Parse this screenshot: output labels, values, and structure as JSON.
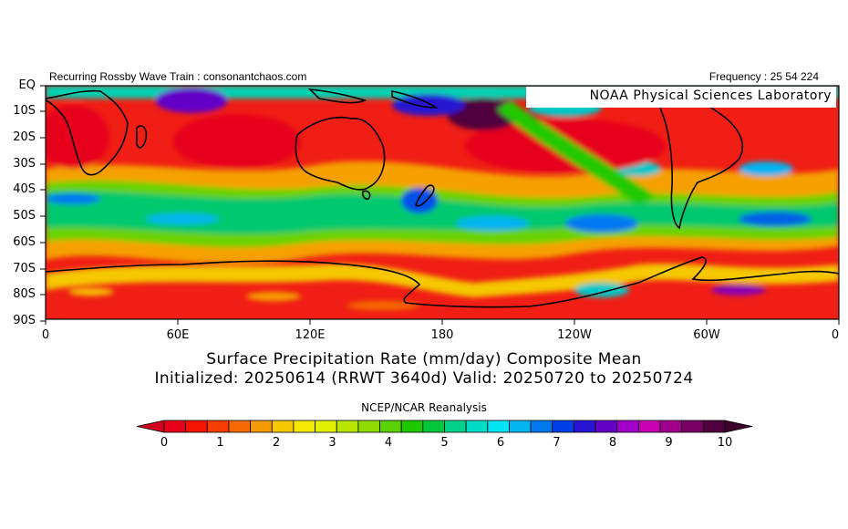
{
  "header": {
    "left_text": "Recurring Rossby Wave Train : consonantchaos.com",
    "right_text": "Frequency : 25 54 224"
  },
  "badge": {
    "text": "NOAA Physical Sciences Laboratory"
  },
  "map": {
    "region": "Southern Hemisphere, 0°–360° longitude, Equator to 90°S",
    "lat_labels": [
      "EQ",
      "10S",
      "20S",
      "30S",
      "40S",
      "50S",
      "60S",
      "70S",
      "80S",
      "90S"
    ],
    "lon_labels": [
      "0",
      "60E",
      "120E",
      "180",
      "120W",
      "60W",
      "0"
    ],
    "field": "precipitation rate shaded; high values in tropics and storm tracks, low values in subtropical highs and Antarctica"
  },
  "titles": {
    "line1": "Surface Precipitation Rate (mm/day) Composite Mean",
    "line2": "Initialized: 20250614 (RRWT 3640d) Valid: 20250720 to 20250724"
  },
  "source": {
    "text": "NCEP/NCAR Reanalysis"
  },
  "colorbar": {
    "ticks": [
      "0",
      "1",
      "2",
      "3",
      "4",
      "5",
      "6",
      "7",
      "8",
      "9",
      "10"
    ],
    "colors": [
      "#e6001a",
      "#f51500",
      "#f53d00",
      "#f56b00",
      "#f59a00",
      "#f5c800",
      "#f5e900",
      "#e0f000",
      "#b8e600",
      "#90dc00",
      "#5ad200",
      "#20c800",
      "#00c83c",
      "#00d28c",
      "#00dcc8",
      "#00e6f5",
      "#00b4f0",
      "#0078f0",
      "#0040e6",
      "#2814d2",
      "#6400c8",
      "#a000c8",
      "#c800b4",
      "#a0008c",
      "#780064",
      "#50003c"
    ],
    "min_color": "#d2001e",
    "max_color": "#3c002a"
  }
}
